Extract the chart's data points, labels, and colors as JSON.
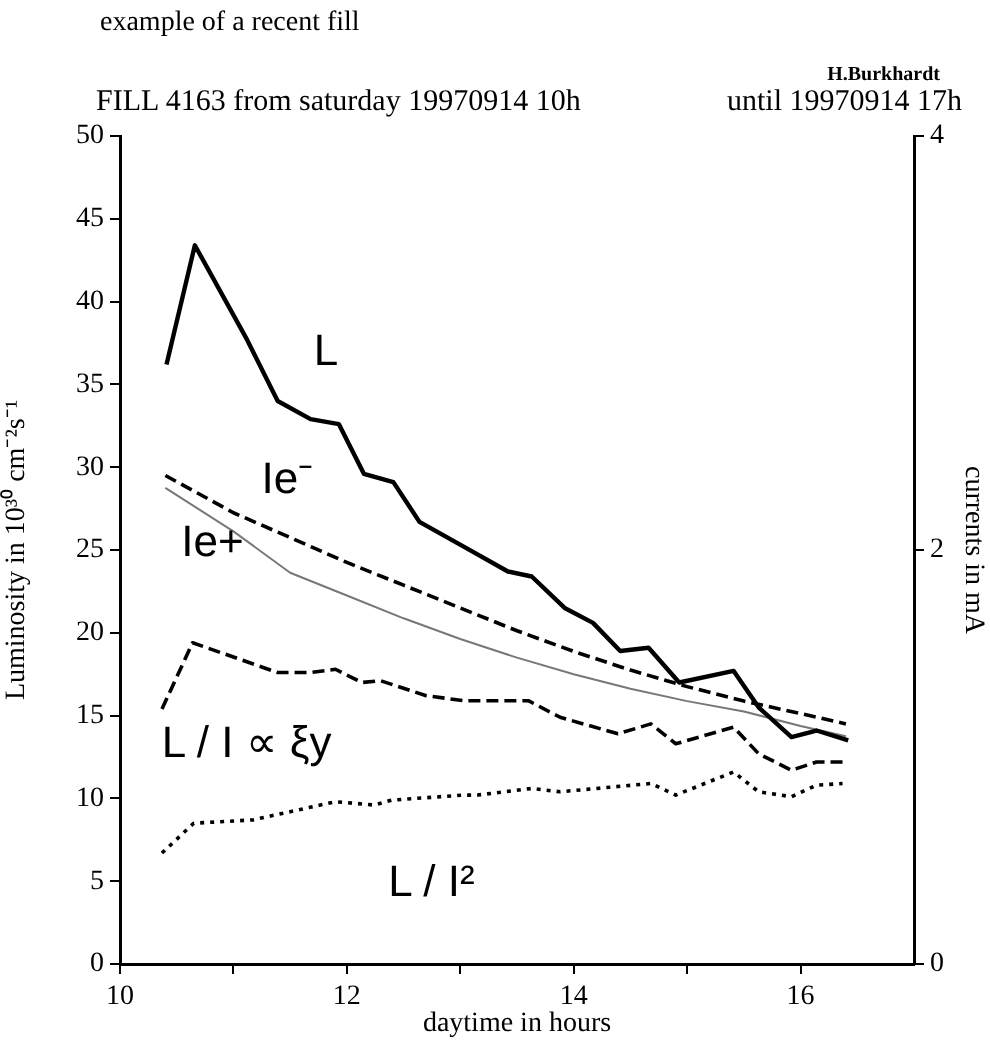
{
  "chart_data": {
    "type": "line",
    "title": "example of a recent fill",
    "subtitle": "FILL 4163   from saturday 19970914 10h",
    "annotations": [
      "until 19970914 17h",
      "H.Burkhardt"
    ],
    "xlabel": "daytime in hours",
    "ylabel": "Luminosity in 10³⁰ cm⁻²s⁻¹",
    "y2label": "currents in mA",
    "xlim": [
      10,
      17
    ],
    "xticks": [
      10,
      {
        "value": 11,
        "label": null
      },
      12,
      {
        "value": 13,
        "label": null
      },
      14,
      {
        "value": 15,
        "label": null
      },
      16
    ],
    "ylim": [
      0,
      50
    ],
    "yticks": [
      0,
      5,
      10,
      15,
      20,
      25,
      30,
      35,
      40,
      45,
      50
    ],
    "y2lim": [
      0,
      4
    ],
    "y2ticks": [
      0,
      2,
      4
    ],
    "grid": false,
    "legend": false,
    "series": [
      {
        "name": "L",
        "color": "#000000",
        "line_style": "solid",
        "x": [
          10.41,
          10.66,
          11.12,
          11.39,
          11.68,
          11.93,
          12.15,
          12.41,
          12.64,
          13.03,
          13.42,
          13.63,
          13.92,
          14.17,
          14.41,
          14.66,
          14.93,
          15.41,
          15.63,
          15.92,
          16.14,
          16.42
        ],
        "values": [
          36.2,
          43.4,
          37.7,
          34.0,
          32.9,
          32.6,
          29.6,
          29.1,
          26.7,
          25.2,
          23.7,
          23.4,
          21.5,
          20.6,
          18.9,
          19.1,
          17.0,
          17.7,
          15.5,
          13.7,
          14.1,
          13.5
        ]
      },
      {
        "name": "Ie⁻",
        "color": "#000000",
        "line_style": "dashed",
        "axis": "y2",
        "x": [
          10.4,
          11,
          11.5,
          12,
          12.5,
          13,
          13.5,
          14,
          14.5,
          15,
          15.5,
          16,
          16.4
        ],
        "values": [
          2.36,
          2.18,
          2.06,
          1.94,
          1.83,
          1.72,
          1.61,
          1.51,
          1.42,
          1.34,
          1.27,
          1.21,
          1.16
        ]
      },
      {
        "name": "Ie+",
        "color": "#777777",
        "line_style": "solid",
        "axis": "y2",
        "x": [
          10.4,
          11,
          11.5,
          12,
          12.5,
          13,
          13.5,
          14,
          14.5,
          15,
          15.5,
          16,
          16.4
        ],
        "values": [
          2.3,
          2.09,
          1.89,
          1.78,
          1.67,
          1.57,
          1.48,
          1.4,
          1.33,
          1.27,
          1.22,
          1.15,
          1.1
        ]
      },
      {
        "name": "L / I ∝ ξy",
        "color": "#000000",
        "line_style": "dashed",
        "x": [
          10.37,
          10.64,
          11.39,
          11.68,
          11.9,
          12.13,
          12.3,
          12.7,
          13.03,
          13.6,
          13.88,
          14.39,
          14.68,
          14.9,
          15.41,
          15.63,
          15.92,
          16.14,
          16.37
        ],
        "values": [
          15.4,
          19.4,
          17.6,
          17.6,
          17.8,
          17.0,
          17.1,
          16.2,
          15.9,
          15.9,
          14.9,
          13.9,
          14.5,
          13.3,
          14.3,
          12.7,
          11.7,
          12.2,
          12.2
        ]
      },
      {
        "name": "L / I²",
        "color": "#000000",
        "line_style": "dotted",
        "x": [
          10.37,
          10.65,
          11.17,
          11.9,
          12.24,
          12.4,
          13.03,
          13.15,
          13.63,
          13.88,
          14.68,
          14.9,
          15.41,
          15.63,
          15.92,
          16.14,
          16.37
        ],
        "values": [
          6.7,
          8.5,
          8.7,
          9.8,
          9.6,
          9.9,
          10.2,
          10.2,
          10.6,
          10.4,
          10.9,
          10.2,
          11.6,
          10.4,
          10.1,
          10.8,
          10.9
        ]
      }
    ]
  }
}
